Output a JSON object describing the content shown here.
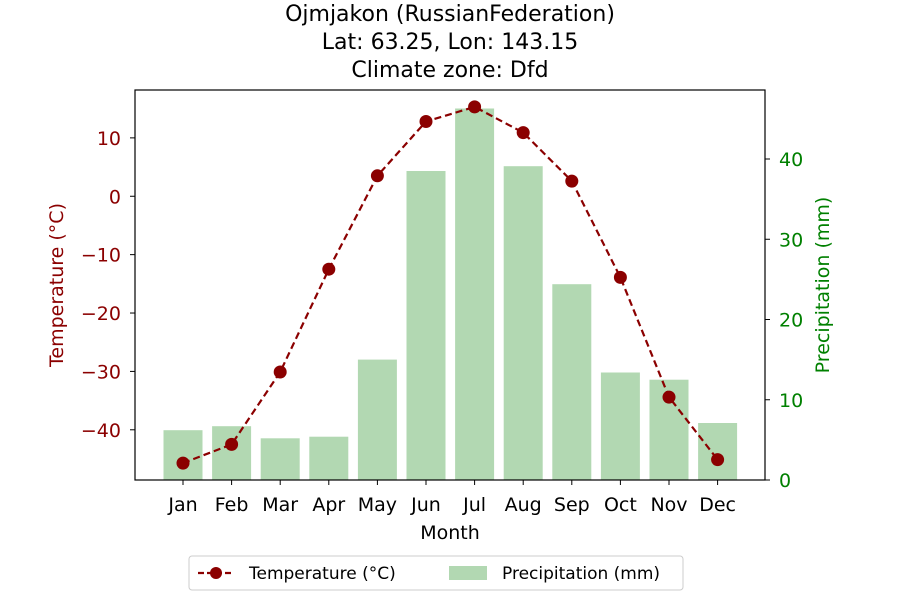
{
  "chart_data": {
    "type": "bar+line",
    "title": [
      "Ojmjakon (RussianFederation)",
      "Lat: 63.25, Lon: 143.15",
      "Climate zone: Dfd"
    ],
    "xlabel": "Month",
    "categories": [
      "Jan",
      "Feb",
      "Mar",
      "Apr",
      "May",
      "Jun",
      "Jul",
      "Aug",
      "Sep",
      "Oct",
      "Nov",
      "Dec"
    ],
    "series": [
      {
        "name": "Temperature (°C)",
        "type": "line",
        "axis": "left",
        "values": [
          -45.7,
          -42.5,
          -30.1,
          -12.5,
          3.5,
          12.8,
          15.3,
          10.9,
          2.6,
          -13.9,
          -34.4,
          -45.1
        ],
        "color": "#8b0000",
        "line_style": "dashed",
        "marker": "circle"
      },
      {
        "name": "Precipitation (mm)",
        "type": "bar",
        "axis": "right",
        "values": [
          6.2,
          6.7,
          5.2,
          5.4,
          15.0,
          38.5,
          46.3,
          39.1,
          24.4,
          13.4,
          12.5,
          7.1
        ],
        "color": "#b2d8b2"
      }
    ],
    "y_left": {
      "label": "Temperature (°C)",
      "range": [
        -48.6,
        18.2
      ],
      "ticks": [
        10,
        0,
        -10,
        -20,
        -30,
        -40
      ],
      "tick_labels": [
        "10",
        "0",
        "−10",
        "−20",
        "−30",
        "−40"
      ],
      "color": "#8b0000"
    },
    "y_right": {
      "label": "Precipitation (mm)",
      "range": [
        0,
        48.6
      ],
      "ticks": [
        0,
        10,
        20,
        30,
        40
      ],
      "tick_labels": [
        "0",
        "10",
        "20",
        "30",
        "40"
      ],
      "color": "#008000"
    },
    "grid": false,
    "legend": {
      "position": "bottom-center",
      "entries": [
        "Temperature (°C)",
        "Precipitation (mm)"
      ]
    }
  }
}
